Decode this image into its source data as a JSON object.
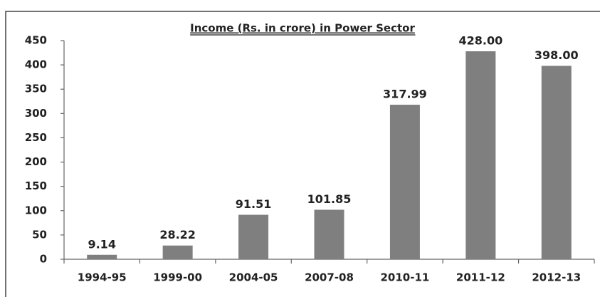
{
  "chart_data": {
    "type": "bar",
    "title": "Income (Rs. in crore) in Power Sector",
    "categories": [
      "1994-95",
      "1999-00",
      "2004-05",
      "2007-08",
      "2010-11",
      "2011-12",
      "2012-13"
    ],
    "values": [
      9.14,
      28.22,
      91.51,
      101.85,
      317.99,
      428,
      398
    ],
    "value_labels": [
      "9.14",
      "28.22",
      "91.51",
      "101.85",
      "317.99",
      "428.00",
      "398.00"
    ],
    "color": "#7f7f7f",
    "ylim": [
      0,
      450
    ],
    "yticks": [
      0,
      50,
      100,
      150,
      200,
      250,
      300,
      350,
      400,
      450
    ],
    "grid": false
  }
}
